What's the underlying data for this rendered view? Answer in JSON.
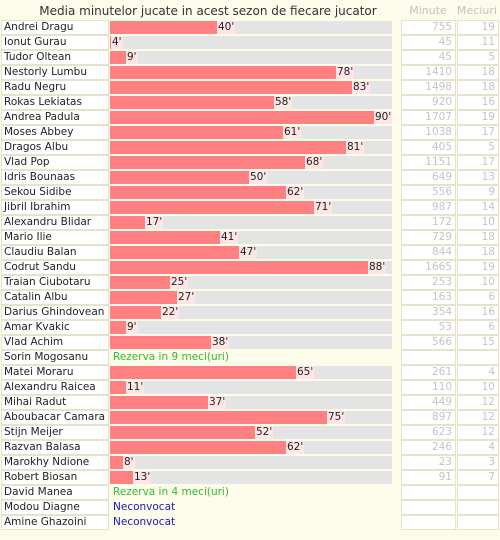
{
  "header": {
    "title": "Media minutelor jucate in acest sezon de fiecare jucator",
    "minutes_label": "Minute",
    "matches_label": "Meciuri"
  },
  "colors": {
    "bar": "#ff8080",
    "track": "#e4e4e4",
    "label_bg": "#ffe6e6",
    "reserve_text": "#33bb33",
    "absent_text": "#1a1ab3"
  },
  "chart_data": {
    "type": "bar",
    "orientation": "horizontal",
    "title": "Media minutelor jucate in acest sezon de fiecare jucator",
    "xlim": [
      0,
      90
    ],
    "grid": false,
    "legend": "none",
    "value_suffix": "'",
    "columns": [
      "Minute",
      "Meciuri"
    ],
    "players": [
      {
        "name": "Andrei Dragu",
        "avg": 40,
        "minutes": "755",
        "matches": "19"
      },
      {
        "name": "Ionut Gurau",
        "avg": 4,
        "minutes": "45",
        "matches": "11"
      },
      {
        "name": "Tudor Oltean",
        "avg": 9,
        "minutes": "45",
        "matches": "5"
      },
      {
        "name": "Nestorly Lumbu",
        "avg": 78,
        "minutes": "1410",
        "matches": "18"
      },
      {
        "name": "Radu Negru",
        "avg": 83,
        "minutes": "1498",
        "matches": "18"
      },
      {
        "name": "Rokas Lekiatas",
        "avg": 58,
        "minutes": "920",
        "matches": "16"
      },
      {
        "name": "Andrea Padula",
        "avg": 90,
        "minutes": "1707",
        "matches": "19"
      },
      {
        "name": "Moses Abbey",
        "avg": 61,
        "minutes": "1038",
        "matches": "17"
      },
      {
        "name": "Dragos Albu",
        "avg": 81,
        "minutes": "405",
        "matches": "5"
      },
      {
        "name": "Vlad Pop",
        "avg": 68,
        "minutes": "1151",
        "matches": "17"
      },
      {
        "name": "Idris Bounaas",
        "avg": 50,
        "minutes": "649",
        "matches": "13"
      },
      {
        "name": "Sekou Sidibe",
        "avg": 62,
        "minutes": "556",
        "matches": "9"
      },
      {
        "name": "Jibril Ibrahim",
        "avg": 71,
        "minutes": "987",
        "matches": "14"
      },
      {
        "name": "Alexandru Blidar",
        "avg": 17,
        "minutes": "172",
        "matches": "10"
      },
      {
        "name": "Mario Ilie",
        "avg": 41,
        "minutes": "729",
        "matches": "18"
      },
      {
        "name": "Claudiu Balan",
        "avg": 47,
        "minutes": "844",
        "matches": "18"
      },
      {
        "name": "Codrut Sandu",
        "avg": 88,
        "minutes": "1665",
        "matches": "19"
      },
      {
        "name": "Traian Ciubotaru",
        "avg": 25,
        "minutes": "253",
        "matches": "10"
      },
      {
        "name": "Catalin Albu",
        "avg": 27,
        "minutes": "163",
        "matches": "6"
      },
      {
        "name": "Darius Ghindovean",
        "avg": 22,
        "minutes": "354",
        "matches": "16"
      },
      {
        "name": "Amar Kvakic",
        "avg": 9,
        "minutes": "53",
        "matches": "6"
      },
      {
        "name": "Vlad Achim",
        "avg": 38,
        "minutes": "566",
        "matches": "15"
      },
      {
        "name": "Sorin Mogosanu",
        "status": "Rezerva in 9 meci(uri)",
        "status_kind": "reserve",
        "minutes": "",
        "matches": ""
      },
      {
        "name": "Matei Moraru",
        "avg": 65,
        "minutes": "261",
        "matches": "4"
      },
      {
        "name": "Alexandru Raicea",
        "avg": 11,
        "minutes": "110",
        "matches": "10"
      },
      {
        "name": "Mihai Radut",
        "avg": 37,
        "minutes": "449",
        "matches": "12"
      },
      {
        "name": "Aboubacar Camara",
        "avg": 75,
        "minutes": "897",
        "matches": "12"
      },
      {
        "name": "Stijn Meijer",
        "avg": 52,
        "minutes": "623",
        "matches": "12"
      },
      {
        "name": "Razvan Balasa",
        "avg": 62,
        "minutes": "246",
        "matches": "4"
      },
      {
        "name": "Marokhy Ndione",
        "avg": 8,
        "minutes": "23",
        "matches": "3"
      },
      {
        "name": "Robert Biosan",
        "avg": 13,
        "minutes": "91",
        "matches": "7"
      },
      {
        "name": "David Manea",
        "status": "Rezerva in 4 meci(uri)",
        "status_kind": "reserve",
        "minutes": "",
        "matches": ""
      },
      {
        "name": "Modou Diagne",
        "status": "Neconvocat",
        "status_kind": "absent",
        "minutes": "",
        "matches": ""
      },
      {
        "name": "Amine Ghazoini",
        "status": "Neconvocat",
        "status_kind": "absent",
        "minutes": "",
        "matches": ""
      }
    ]
  }
}
